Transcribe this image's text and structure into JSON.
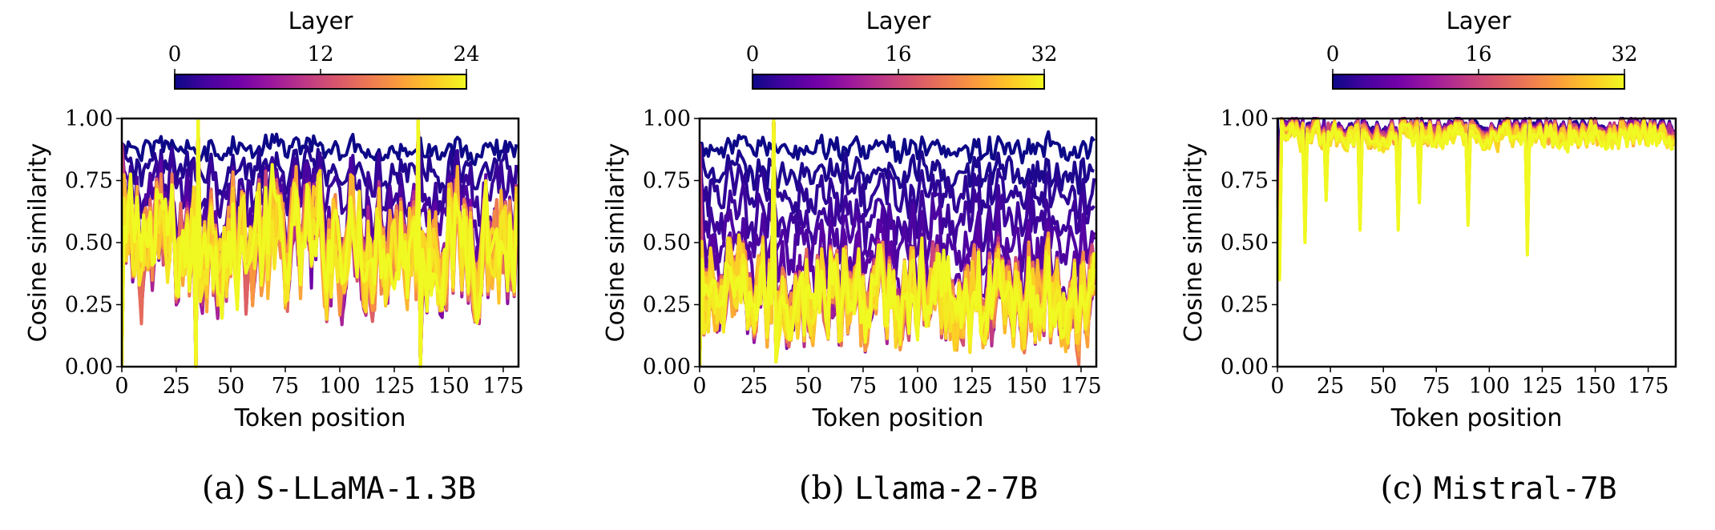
{
  "caption_prefixes": [
    "(a)",
    "(b)",
    "(c)"
  ],
  "colormap": {
    "name": "plasma",
    "stops": [
      "#0d0887",
      "#46039f",
      "#7201a8",
      "#9c179e",
      "#bd3786",
      "#d8576b",
      "#ed7953",
      "#fb9f3a",
      "#fdca26",
      "#f0f921"
    ]
  },
  "chart_data": [
    {
      "type": "line",
      "caption": "S-LLaMA-1.3B",
      "colorbar": {
        "label": "Layer",
        "range": [
          0,
          24
        ],
        "ticks": [
          "0",
          "12",
          "24"
        ]
      },
      "xlabel": "Token position",
      "ylabel": "Cosine similarity",
      "xlim": [
        0,
        182
      ],
      "ylim": [
        0,
        1
      ],
      "xticks": [
        "0",
        "25",
        "50",
        "75",
        "100",
        "125",
        "150",
        "175"
      ],
      "yticks": [
        "0.00",
        "0.25",
        "0.50",
        "0.75",
        "1.00"
      ],
      "num_layers": 24,
      "num_tokens": 182,
      "series_summary": "One line per layer 0–24; early layers (dark) stay near 0.85–0.95, later layers (yellow) fluctuate 0.3–0.65 with sharp drops to 0 near tokens 34 and 137",
      "layer_profiles": {
        "early_mean": 0.88,
        "late_mean": 0.5,
        "late_spread": 0.28,
        "spikes": [
          {
            "x": 34,
            "y": 0.0
          },
          {
            "x": 137,
            "y": 0.0
          },
          {
            "x": 35,
            "y": 0.99
          },
          {
            "x": 136,
            "y": 0.99
          }
        ]
      }
    },
    {
      "type": "line",
      "caption": "Llama-2-7B",
      "colorbar": {
        "label": "Layer",
        "range": [
          0,
          32
        ],
        "ticks": [
          "0",
          "16",
          "32"
        ]
      },
      "xlabel": "Token position",
      "ylabel": "Cosine similarity",
      "xlim": [
        0,
        182
      ],
      "ylim": [
        0,
        1
      ],
      "xticks": [
        "0",
        "25",
        "50",
        "75",
        "100",
        "125",
        "150",
        "175"
      ],
      "yticks": [
        "0.00",
        "0.25",
        "0.50",
        "0.75",
        "1.00"
      ],
      "num_layers": 32,
      "num_tokens": 182,
      "series_summary": "Early layers (dark) near 0.85–0.95; later layers (yellow) concentrated 0.15–0.45 with spikes to ~0.65",
      "layer_profiles": {
        "early_mean": 0.88,
        "late_mean": 0.28,
        "late_spread": 0.22,
        "spikes": [
          {
            "x": 34,
            "y": 0.99
          },
          {
            "x": 35,
            "y": 0.02
          }
        ]
      }
    },
    {
      "type": "line",
      "caption": "Mistral-7B",
      "colorbar": {
        "label": "Layer",
        "range": [
          0,
          32
        ],
        "ticks": [
          "0",
          "16",
          "32"
        ]
      },
      "xlabel": "Token position",
      "ylabel": "Cosine similarity",
      "xlim": [
        0,
        188
      ],
      "ylim": [
        0,
        1
      ],
      "xticks": [
        "0",
        "25",
        "50",
        "75",
        "100",
        "125",
        "150",
        "175"
      ],
      "yticks": [
        "0.00",
        "0.25",
        "0.50",
        "0.75",
        "1.00"
      ],
      "num_layers": 32,
      "num_tokens": 188,
      "series_summary": "All layers stay near 0.9–1.0 with dips at specific tokens (to ~0.35 at token 1, ~0.5 at 13, ~0.55 at 57, ~0.45 at 118)",
      "layer_profiles": {
        "early_mean": 0.97,
        "late_mean": 0.93,
        "late_spread": 0.05,
        "spikes": [
          {
            "x": 1,
            "y": 0.35
          },
          {
            "x": 13,
            "y": 0.5
          },
          {
            "x": 23,
            "y": 0.67
          },
          {
            "x": 39,
            "y": 0.55
          },
          {
            "x": 57,
            "y": 0.55
          },
          {
            "x": 67,
            "y": 0.66
          },
          {
            "x": 90,
            "y": 0.57
          },
          {
            "x": 118,
            "y": 0.45
          }
        ]
      }
    }
  ]
}
